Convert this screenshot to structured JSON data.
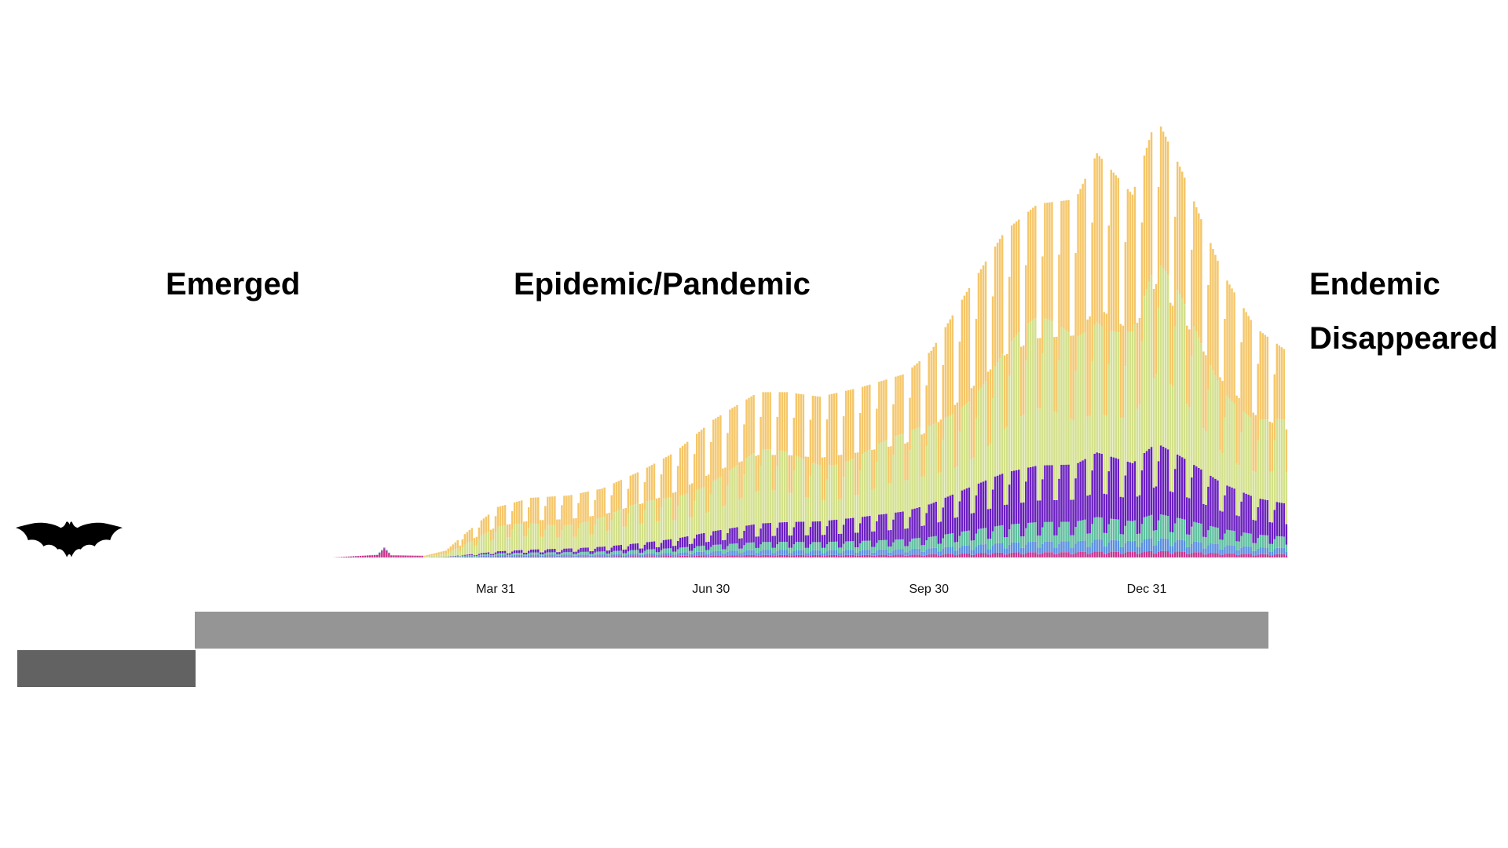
{
  "phases": {
    "emerged": "Emerged",
    "epidemic": "Epidemic/Pandemic",
    "endemic": "Endemic",
    "disappeared": "Disappeared"
  },
  "icons": {
    "bat": "bat-icon"
  },
  "timeline": {
    "epidemic_bar_color": "#959595",
    "emergence_bar_color": "#626262"
  },
  "chart_data": {
    "type": "bar",
    "stacked": true,
    "title": "",
    "xlabel": "",
    "ylabel": "",
    "x_axis": "date",
    "x_range": [
      "2020-01-22",
      "2021-02-28"
    ],
    "x_ticks": [
      {
        "date": "2020-03-31",
        "label": "Mar 31"
      },
      {
        "date": "2020-06-30",
        "label": "Jun 30"
      },
      {
        "date": "2020-09-30",
        "label": "Sep 30"
      },
      {
        "date": "2020-12-31",
        "label": "Dec 31"
      }
    ],
    "y_axis_visible": false,
    "grid": false,
    "legend": "none",
    "series_colors": [
      "#c8368f",
      "#5b8fe0",
      "#5fbf9f",
      "#6a1fbf",
      "#d3e08a",
      "#f5c76a"
    ],
    "total_envelope": [
      {
        "date": "2020-01-22",
        "value": 0.0
      },
      {
        "date": "2020-02-10",
        "value": 0.6
      },
      {
        "date": "2020-02-13",
        "value": 2.2
      },
      {
        "date": "2020-02-16",
        "value": 0.5
      },
      {
        "date": "2020-03-01",
        "value": 0.4
      },
      {
        "date": "2020-03-10",
        "value": 1.5
      },
      {
        "date": "2020-03-20",
        "value": 6.0
      },
      {
        "date": "2020-04-01",
        "value": 11.0
      },
      {
        "date": "2020-04-15",
        "value": 13.0
      },
      {
        "date": "2020-05-01",
        "value": 13.5
      },
      {
        "date": "2020-05-15",
        "value": 15.0
      },
      {
        "date": "2020-06-01",
        "value": 19.0
      },
      {
        "date": "2020-06-15",
        "value": 23.0
      },
      {
        "date": "2020-07-01",
        "value": 30.0
      },
      {
        "date": "2020-07-20",
        "value": 36.0
      },
      {
        "date": "2020-08-01",
        "value": 36.0
      },
      {
        "date": "2020-08-15",
        "value": 35.0
      },
      {
        "date": "2020-09-01",
        "value": 37.0
      },
      {
        "date": "2020-09-20",
        "value": 40.0
      },
      {
        "date": "2020-10-01",
        "value": 45.0
      },
      {
        "date": "2020-10-15",
        "value": 57.0
      },
      {
        "date": "2020-11-01",
        "value": 71.0
      },
      {
        "date": "2020-11-15",
        "value": 77.0
      },
      {
        "date": "2020-12-01",
        "value": 78.0
      },
      {
        "date": "2020-12-10",
        "value": 88.0
      },
      {
        "date": "2020-12-25",
        "value": 79.0
      },
      {
        "date": "2021-01-04",
        "value": 96.0
      },
      {
        "date": "2021-01-15",
        "value": 84.0
      },
      {
        "date": "2021-02-01",
        "value": 62.0
      },
      {
        "date": "2021-02-15",
        "value": 50.0
      },
      {
        "date": "2021-02-28",
        "value": 45.0
      }
    ]
  }
}
